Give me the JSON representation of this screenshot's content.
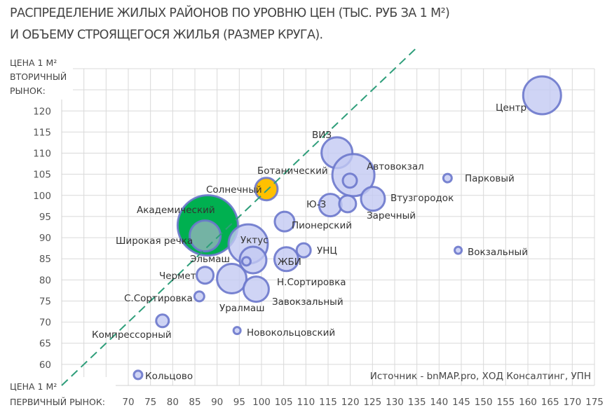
{
  "chart_data": {
    "type": "scatter",
    "subtype": "bubble",
    "title_line1": "РАСПРЕДЕЛЕНИЕ ЖИЛЫХ РАЙОНОВ ПО УРОВНЮ ЦЕН (ТЫС. РУБ ЗА 1 М²)",
    "title_line2": "И ОБЪЕМУ СТРОЯЩЕГОСЯ ЖИЛЬЯ (РАЗМЕР КРУГА).",
    "ylabel": [
      "ЦЕНА 1 М²",
      "ВТОРИЧНЫЙ",
      "РЫНОК:"
    ],
    "xlabel": [
      "ЦЕНА 1 М²",
      "ПЕРВИЧНЫЙ РЫНОК:"
    ],
    "xlim": [
      55,
      175
    ],
    "ylim": [
      55,
      130
    ],
    "xticks": [
      70,
      75,
      80,
      85,
      90,
      95,
      100,
      105,
      110,
      115,
      120,
      125,
      130,
      135,
      140,
      145,
      150,
      155,
      160,
      165,
      170,
      175
    ],
    "yticks": [
      60,
      65,
      70,
      75,
      80,
      85,
      90,
      95,
      100,
      105,
      110,
      115,
      120
    ],
    "grid": true,
    "reference_line": {
      "type": "y=x",
      "style": "dashed",
      "color": "#2e9e7a"
    },
    "source": "Источник - bnMAP.pro, ХОД Консалтинг, УПН",
    "colors": {
      "default_fill": "#c3c9f2",
      "default_stroke": "#6b78cc",
      "Академический": "#00b050",
      "Широкая речка": "#74b3a4",
      "Солнечный": "#ffc000"
    },
    "points": [
      {
        "name": "Академический",
        "x": 87.9,
        "y": 92.9,
        "size": 43
      },
      {
        "name": "Широкая речка",
        "x": 87.3,
        "y": 90.4,
        "size": 22
      },
      {
        "name": "Центр",
        "x": 163.2,
        "y": 123.7,
        "size": 27
      },
      {
        "name": "ВИЗ",
        "x": 117.0,
        "y": 110.1,
        "size": 22
      },
      {
        "name": "Автовокзал",
        "x": 120.7,
        "y": 104.8,
        "size": 30
      },
      {
        "name": "Ботанический",
        "x": 119.9,
        "y": 103.5,
        "size": 10
      },
      {
        "name": "Парковый",
        "x": 141.9,
        "y": 104.1,
        "size": 6
      },
      {
        "name": "Солнечный",
        "x": 101.1,
        "y": 101.5,
        "size": 16
      },
      {
        "name": "Втузгородок",
        "x": 125.1,
        "y": 99.2,
        "size": 17
      },
      {
        "name": "Ю-З",
        "x": 115.5,
        "y": 97.7,
        "size": 16
      },
      {
        "name": "Заречный",
        "x": 119.4,
        "y": 98.0,
        "size": 12
      },
      {
        "name": "Пионерский",
        "x": 105.2,
        "y": 93.8,
        "size": 14
      },
      {
        "name": "Уктус",
        "x": 97.0,
        "y": 88.5,
        "size": 28
      },
      {
        "name": "Н.Сортировка",
        "x": 98.1,
        "y": 84.7,
        "size": 19
      },
      {
        "name": "Эльмаш",
        "x": 96.6,
        "y": 84.4,
        "size": 6
      },
      {
        "name": "ЖБИ",
        "x": 105.6,
        "y": 84.9,
        "size": 17
      },
      {
        "name": "УНЦ",
        "x": 109.5,
        "y": 87.0,
        "size": 10
      },
      {
        "name": "Вокзальный",
        "x": 144.3,
        "y": 87.0,
        "size": 5
      },
      {
        "name": "Чермет",
        "x": 87.3,
        "y": 81.1,
        "size": 12
      },
      {
        "name": "Уралмаш",
        "x": 93.3,
        "y": 80.3,
        "size": 21
      },
      {
        "name": "Завокзальный",
        "x": 98.8,
        "y": 77.8,
        "size": 18
      },
      {
        "name": "С.Сортировка",
        "x": 86.0,
        "y": 76.1,
        "size": 7
      },
      {
        "name": "Компрессорный",
        "x": 77.7,
        "y": 70.3,
        "size": 9
      },
      {
        "name": "Новокольцовский",
        "x": 94.5,
        "y": 68.0,
        "size": 5
      },
      {
        "name": "Кольцово",
        "x": 72.2,
        "y": 57.5,
        "size": 6
      }
    ]
  }
}
